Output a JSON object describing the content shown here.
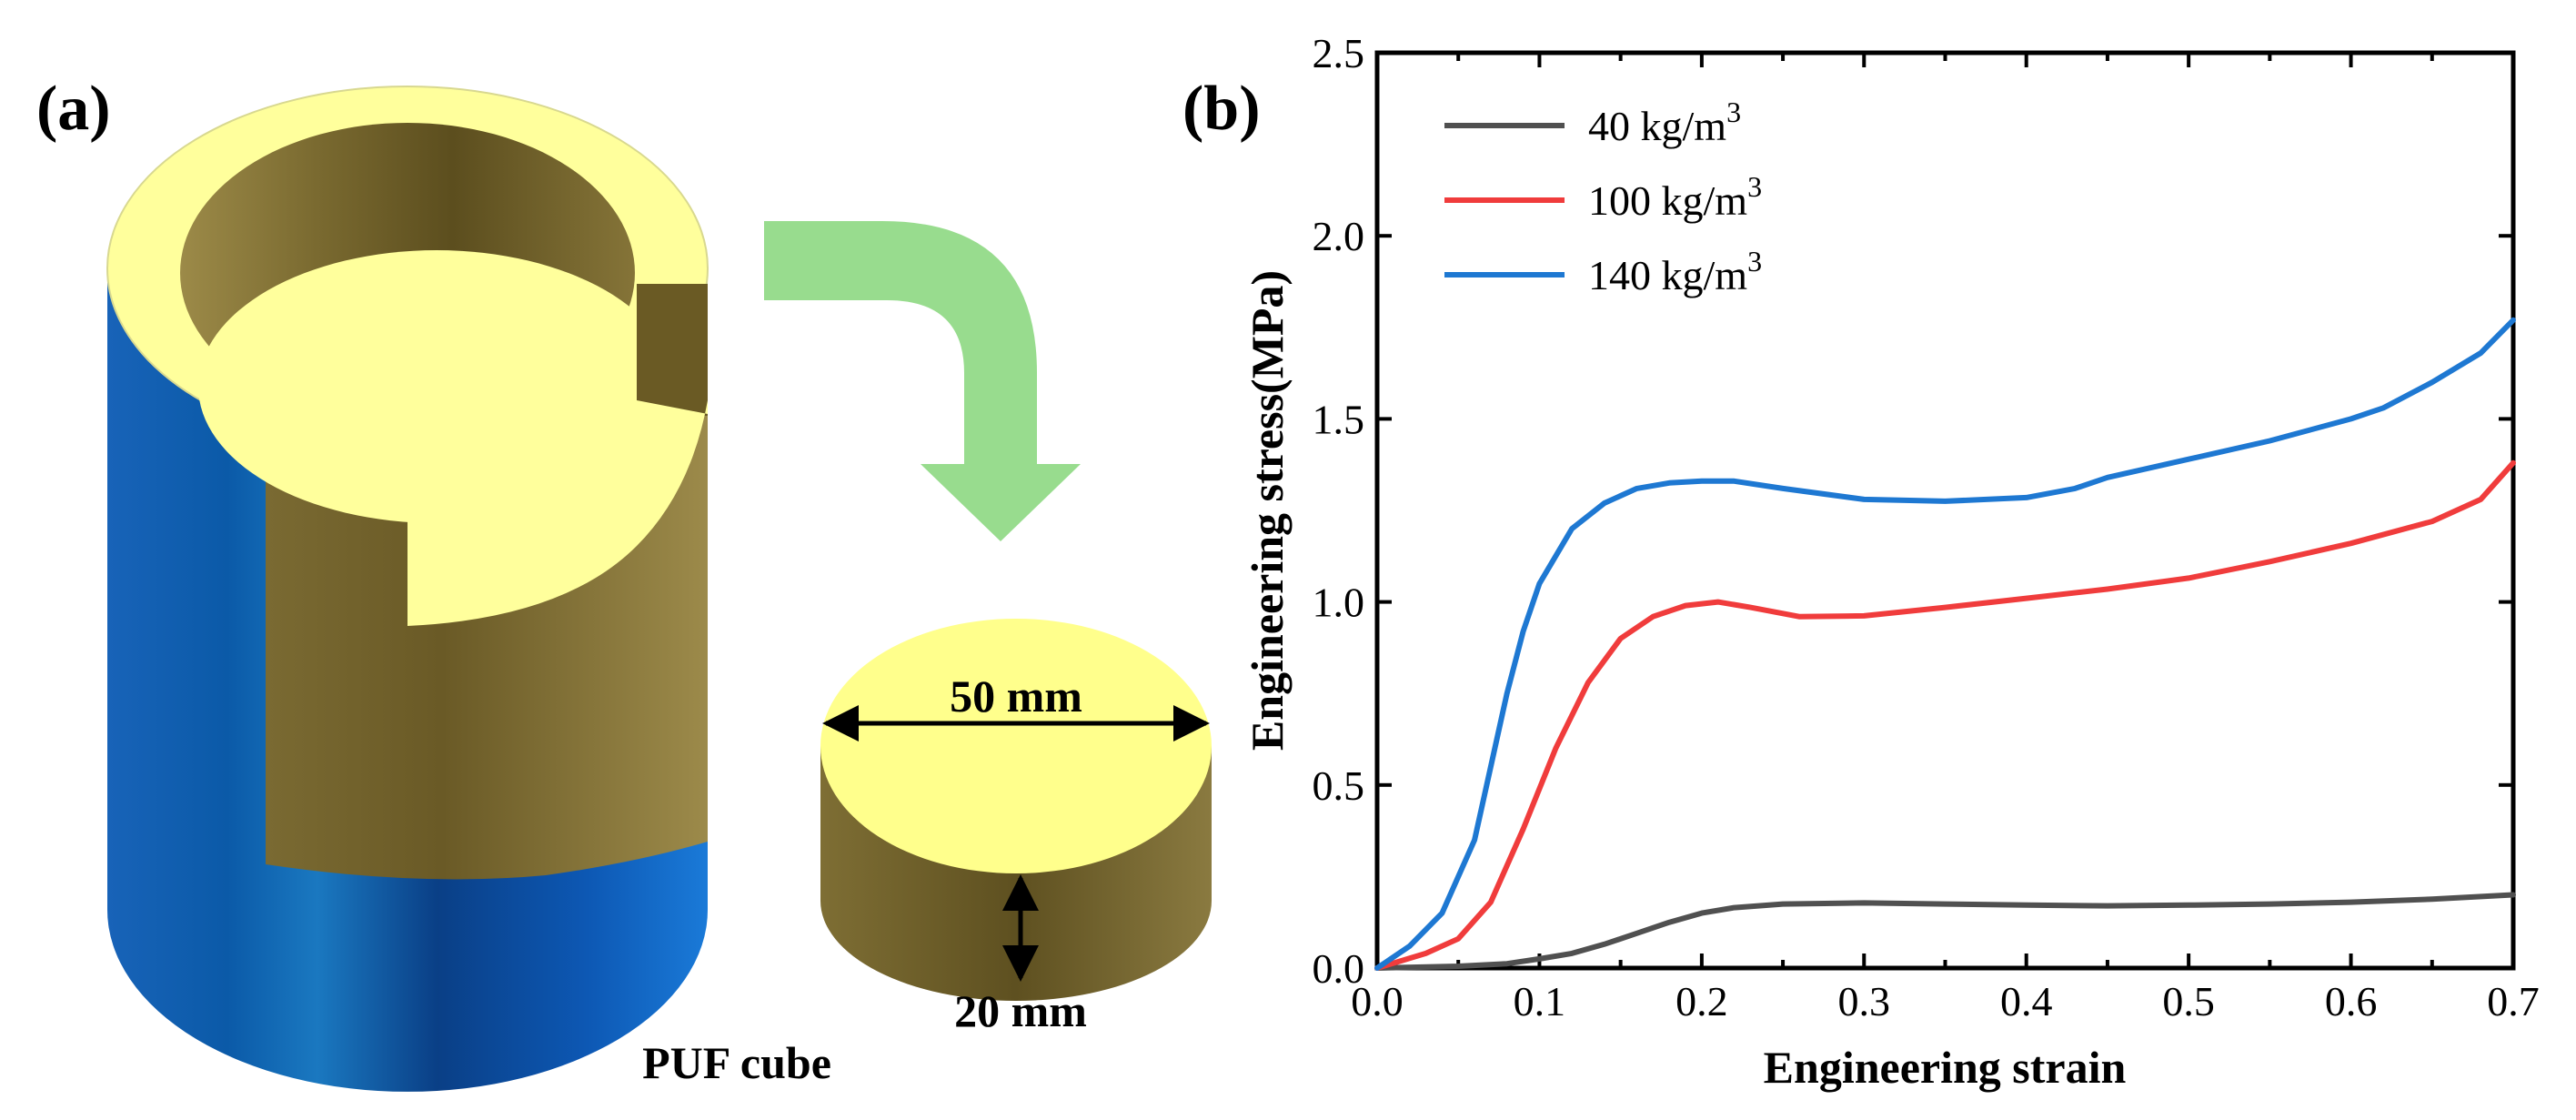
{
  "panel_a": {
    "label": "(a)",
    "arrow_color": "#98dc8e",
    "sample": {
      "diameter_label": "50 mm",
      "height_label": "20 mm"
    },
    "caption": "PUF cube"
  },
  "chart_data": {
    "type": "line",
    "panel_label": "(b)",
    "title": "",
    "xlabel": "Engineering strain",
    "ylabel": "Engineering stress(MPa)",
    "xlim": [
      0,
      0.7
    ],
    "ylim": [
      0,
      2.5
    ],
    "xticks": [
      "0.0",
      "0.1",
      "0.2",
      "0.3",
      "0.4",
      "0.5",
      "0.6",
      "0.7"
    ],
    "yticks": [
      "0.0",
      "0.5",
      "1.0",
      "1.5",
      "2.0",
      "2.5"
    ],
    "legend_position": "top-left",
    "series": [
      {
        "name": "40 kg/m",
        "name_sup": "3",
        "color": "#505050",
        "x": [
          0,
          0.05,
          0.08,
          0.1,
          0.12,
          0.14,
          0.16,
          0.18,
          0.2,
          0.22,
          0.25,
          0.3,
          0.35,
          0.4,
          0.45,
          0.5,
          0.55,
          0.6,
          0.65,
          0.7
        ],
        "y": [
          0,
          0.005,
          0.012,
          0.025,
          0.04,
          0.065,
          0.095,
          0.125,
          0.15,
          0.165,
          0.175,
          0.178,
          0.175,
          0.172,
          0.17,
          0.172,
          0.175,
          0.18,
          0.188,
          0.2
        ]
      },
      {
        "name": "100 kg/m",
        "name_sup": "3",
        "color": "#f03c3c",
        "x": [
          0,
          0.03,
          0.05,
          0.07,
          0.09,
          0.11,
          0.13,
          0.15,
          0.17,
          0.19,
          0.21,
          0.23,
          0.26,
          0.3,
          0.35,
          0.4,
          0.45,
          0.5,
          0.55,
          0.6,
          0.65,
          0.68,
          0.7
        ],
        "y": [
          0,
          0.04,
          0.08,
          0.18,
          0.38,
          0.6,
          0.78,
          0.9,
          0.96,
          0.99,
          1.0,
          0.985,
          0.96,
          0.962,
          0.985,
          1.01,
          1.035,
          1.065,
          1.11,
          1.16,
          1.22,
          1.28,
          1.38
        ]
      },
      {
        "name": "140 kg/m",
        "name_sup": "3",
        "color": "#1e78d2",
        "x": [
          0,
          0.02,
          0.04,
          0.06,
          0.07,
          0.08,
          0.09,
          0.1,
          0.12,
          0.14,
          0.16,
          0.18,
          0.2,
          0.22,
          0.25,
          0.3,
          0.35,
          0.4,
          0.43,
          0.45,
          0.5,
          0.55,
          0.6,
          0.62,
          0.65,
          0.68,
          0.7
        ],
        "y": [
          0,
          0.06,
          0.15,
          0.35,
          0.55,
          0.75,
          0.92,
          1.05,
          1.2,
          1.27,
          1.31,
          1.325,
          1.33,
          1.33,
          1.31,
          1.28,
          1.275,
          1.285,
          1.31,
          1.34,
          1.39,
          1.44,
          1.5,
          1.53,
          1.6,
          1.68,
          1.77
        ]
      }
    ]
  }
}
